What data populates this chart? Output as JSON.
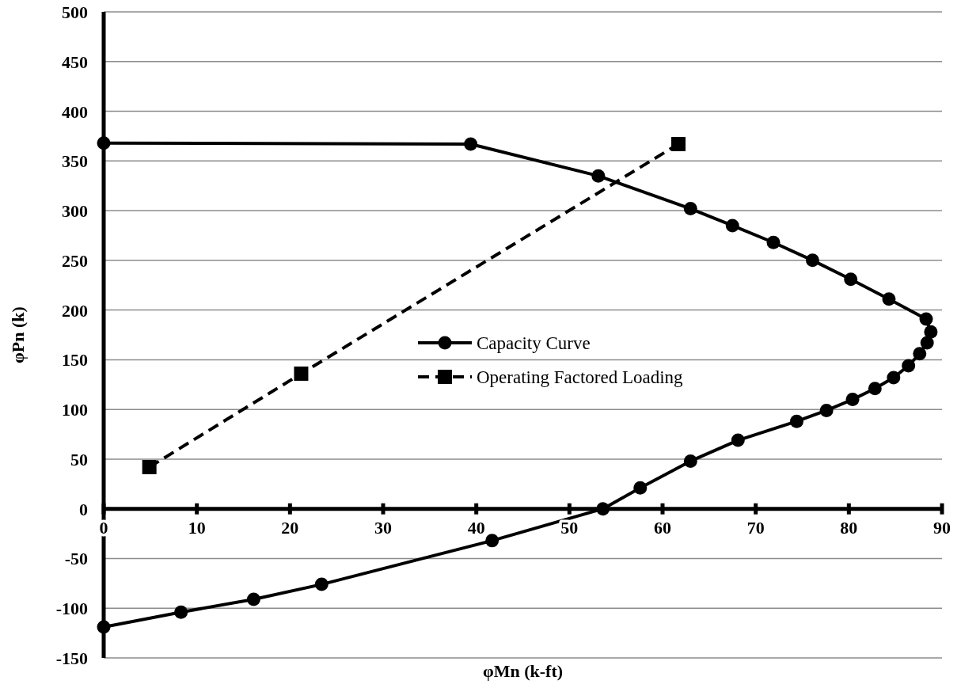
{
  "chart_data": {
    "type": "line",
    "xlabel": "φMn (k-ft)",
    "ylabel": "φPn (k)",
    "xlim": [
      0,
      90
    ],
    "ylim": [
      -150,
      500
    ],
    "xticks": [
      0,
      10,
      20,
      30,
      40,
      50,
      60,
      70,
      80,
      90
    ],
    "yticks": [
      -150,
      -100,
      -50,
      0,
      50,
      100,
      150,
      200,
      250,
      300,
      350,
      400,
      450,
      500
    ],
    "grid": "y",
    "legend": "center",
    "series": [
      {
        "name": "Capacity Curve",
        "color": "#000000",
        "marker": "circle",
        "line_style": "solid",
        "x": [
          0,
          39.4,
          53.1,
          63.0,
          67.5,
          71.9,
          76.1,
          80.2,
          84.3,
          88.3,
          88.8,
          88.4,
          87.6,
          86.4,
          84.8,
          82.8,
          80.4,
          77.6,
          74.4,
          68.1,
          63.0,
          57.6,
          53.6,
          41.7,
          23.4,
          16.1,
          8.3,
          0
        ],
        "values": [
          368,
          367,
          335,
          302,
          285,
          268,
          250,
          231,
          211,
          191,
          178,
          167,
          156,
          144,
          132,
          121,
          110,
          99,
          88,
          69,
          48,
          21,
          0,
          -32,
          -76,
          -91,
          -104,
          -119
        ]
      },
      {
        "name": "Operating Factored Loading",
        "color": "#000000",
        "marker": "square",
        "line_style": "dashed",
        "x": [
          4.9,
          21.2,
          61.7
        ],
        "values": [
          42,
          136,
          367
        ]
      }
    ]
  }
}
